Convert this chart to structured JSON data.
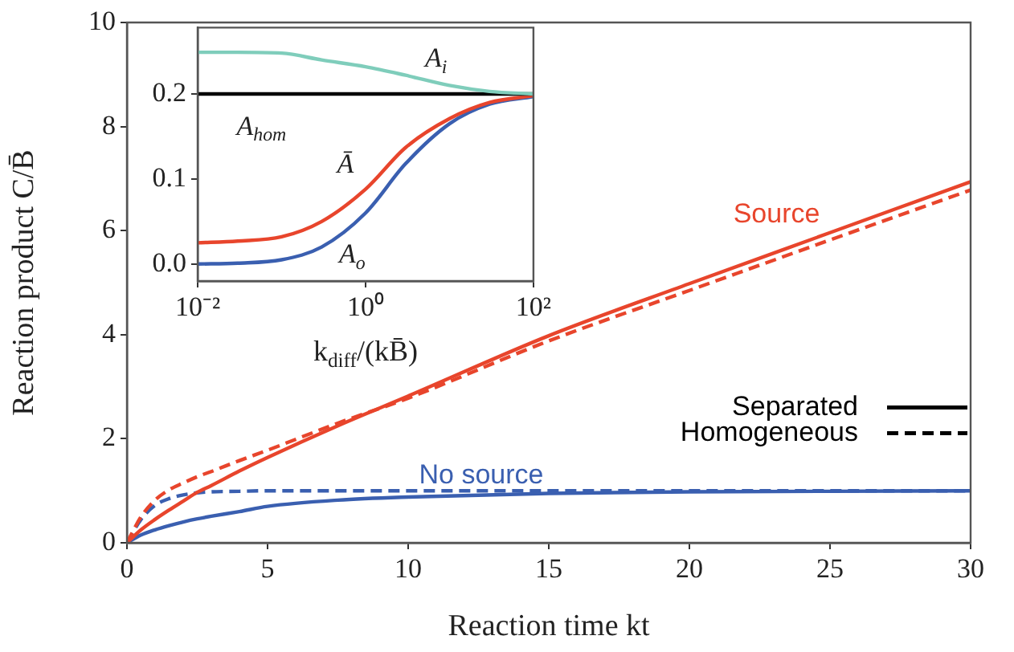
{
  "chart_data": [
    {
      "type": "line",
      "xlabel": "Reaction time kt",
      "ylabel": "Reaction product C/B̄",
      "x": [
        0,
        0.5,
        1,
        1.5,
        2,
        2.5,
        3,
        4,
        5,
        7.5,
        10,
        15,
        20,
        25,
        30
      ],
      "series": [
        {
          "name": "Source",
          "color": "#e8452c",
          "line_style": "solid",
          "values": [
            0,
            0.25,
            0.45,
            0.63,
            0.8,
            0.97,
            1.1,
            1.38,
            1.64,
            2.25,
            2.82,
            3.98,
            4.98,
            5.96,
            6.94
          ]
        },
        {
          "color": "#e8452c",
          "line_style": "dashed",
          "values": [
            0,
            0.5,
            0.82,
            1.02,
            1.15,
            1.27,
            1.37,
            1.58,
            1.78,
            2.3,
            2.78,
            3.88,
            4.85,
            5.82,
            6.78
          ]
        },
        {
          "name": "No source",
          "color": "#3a5fb0",
          "line_style": "solid",
          "values": [
            0,
            0.15,
            0.25,
            0.33,
            0.4,
            0.46,
            0.51,
            0.6,
            0.7,
            0.82,
            0.88,
            0.95,
            0.98,
            0.99,
            1.0
          ]
        },
        {
          "color": "#3a5fb0",
          "line_style": "dashed",
          "values": [
            0,
            0.45,
            0.72,
            0.85,
            0.92,
            0.96,
            0.98,
            0.99,
            1.0,
            1.0,
            1.0,
            1.0,
            1.0,
            1.0,
            1.0
          ]
        },
        {
          "name": "Separated",
          "color": "#000000",
          "line_style": "solid",
          "values": [
            null,
            null,
            null,
            null,
            null,
            null,
            null,
            null,
            null,
            null,
            null,
            null,
            null,
            null,
            null
          ]
        },
        {
          "name": "Homogeneous",
          "color": "#000000",
          "line_style": "dashed",
          "values": [
            null,
            null,
            null,
            null,
            null,
            null,
            null,
            null,
            null,
            null,
            null,
            null,
            null,
            null,
            null
          ]
        }
      ],
      "xlim": [
        0,
        30
      ],
      "xticks": [
        0,
        5,
        10,
        15,
        20,
        25,
        30
      ],
      "ylim": [
        0,
        10
      ],
      "yticks": [
        0,
        2,
        4,
        6,
        8,
        10
      ],
      "legend": "right"
    },
    {
      "type": "line",
      "xlabel": "k$_{diff}$/(kB̄)",
      "log": "x",
      "x": [
        0.01,
        0.03,
        0.1,
        0.3,
        1,
        3,
        10,
        30,
        100
      ],
      "series": [
        {
          "name": "A$_{i}$",
          "color": "#7fcdbb",
          "values": [
            0.249,
            0.249,
            0.248,
            0.24,
            0.232,
            0.222,
            0.21,
            0.203,
            0.2
          ]
        },
        {
          "name": "A$_{hom}$",
          "color": "#000000",
          "values": [
            0.2,
            0.2,
            0.2,
            0.2,
            0.2,
            0.2,
            0.2,
            0.2,
            0.2
          ]
        },
        {
          "name": "Ā",
          "color": "#e8452c",
          "values": [
            0.025,
            0.027,
            0.032,
            0.05,
            0.088,
            0.137,
            0.171,
            0.19,
            0.198
          ]
        },
        {
          "name": "A$_{o}$",
          "color": "#3a5fb0",
          "values": [
            0.0,
            0.001,
            0.005,
            0.02,
            0.06,
            0.118,
            0.165,
            0.188,
            0.197
          ]
        }
      ],
      "xlim": [
        0.01,
        100
      ],
      "xticks": [
        {
          "value": 0.01,
          "label": "10⁻²"
        },
        {
          "value": 1,
          "label": "10⁰"
        },
        {
          "value": 100,
          "label": "10²"
        }
      ],
      "ylim": [
        -0.02,
        0.278
      ],
      "yticks": [
        {
          "value": 0,
          "label": "0.0"
        },
        0.1,
        0.2
      ]
    }
  ]
}
